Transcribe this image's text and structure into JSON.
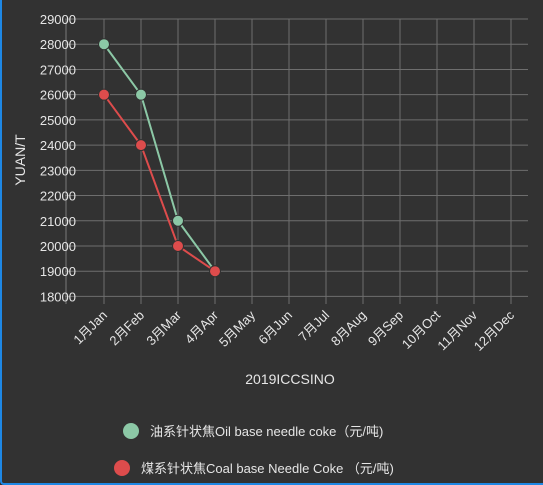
{
  "chart_data": {
    "type": "line",
    "title": "",
    "xlabel": "2019ICCSINO",
    "ylabel": "YUAN/T",
    "categories": [
      "1月Jan",
      "2月Feb",
      "3月Mar",
      "4月Apr",
      "5月May",
      "6月Jun",
      "7月Jul",
      "8月Aug",
      "9月Sep",
      "10月Oct",
      "11月Nov",
      "12月Dec"
    ],
    "y_ticks": [
      "18000",
      "19000",
      "20000",
      "21000",
      "22000",
      "23000",
      "24000",
      "25000",
      "26000",
      "27000",
      "28000",
      "29000"
    ],
    "ylim": [
      17700,
      29000
    ],
    "grid": true,
    "legend_position": "bottom",
    "series": [
      {
        "name": "油系针状焦Oil base needle coke（元/吨)",
        "color": "#8cc8a6",
        "values": [
          28000,
          26000,
          21000,
          19000,
          null,
          null,
          null,
          null,
          null,
          null,
          null,
          null
        ]
      },
      {
        "name": "煤系针状焦Coal base Needle Coke （元/吨)",
        "color": "#dd4c4c",
        "values": [
          26000,
          24000,
          20000,
          19000,
          null,
          null,
          null,
          null,
          null,
          null,
          null,
          null
        ]
      }
    ]
  }
}
